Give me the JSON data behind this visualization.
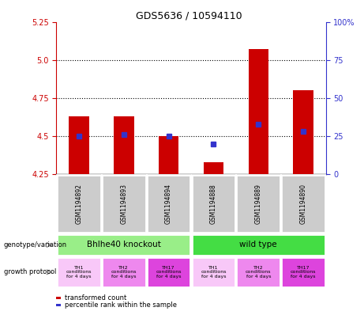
{
  "title": "GDS5636 / 10594110",
  "samples": [
    "GSM1194892",
    "GSM1194893",
    "GSM1194894",
    "GSM1194888",
    "GSM1194889",
    "GSM1194890"
  ],
  "transformed_counts": [
    4.63,
    4.63,
    4.5,
    4.33,
    5.07,
    4.8
  ],
  "percentile_ranks": [
    25,
    26,
    25,
    20,
    33,
    28
  ],
  "ylim_left": [
    4.25,
    5.25
  ],
  "ylim_right": [
    0,
    100
  ],
  "yticks_left": [
    4.25,
    4.5,
    4.75,
    5.0,
    5.25
  ],
  "yticks_right": [
    0,
    25,
    50,
    75,
    100
  ],
  "bar_color": "#cc0000",
  "dot_color": "#3333cc",
  "bar_baseline": 4.25,
  "genotype_groups": [
    {
      "label": "Bhlhe40 knockout",
      "start": 0,
      "end": 3,
      "color": "#99ee88"
    },
    {
      "label": "wild type",
      "start": 3,
      "end": 6,
      "color": "#44dd44"
    }
  ],
  "growth_protocol_colors": [
    "#f8c8f8",
    "#ee88ee",
    "#dd44dd",
    "#f8c8f8",
    "#ee88ee",
    "#dd44dd"
  ],
  "growth_protocol_labels": [
    "TH1\nconditions\nfor 4 days",
    "TH2\nconditions\nfor 4 days",
    "TH17\nconditions\nfor 4 days",
    "TH1\nconditions\nfor 4 days",
    "TH2\nconditions\nfor 4 days",
    "TH17\nconditions\nfor 4 days"
  ],
  "sample_bg_color": "#cccccc",
  "left_axis_color": "#cc0000",
  "right_axis_color": "#3333cc",
  "hgrid_vals": [
    4.5,
    4.75,
    5.0
  ],
  "left_label_geno": "genotype/variation",
  "left_label_growth": "growth protocol",
  "legend_red": "transformed count",
  "legend_blue": "percentile rank within the sample"
}
